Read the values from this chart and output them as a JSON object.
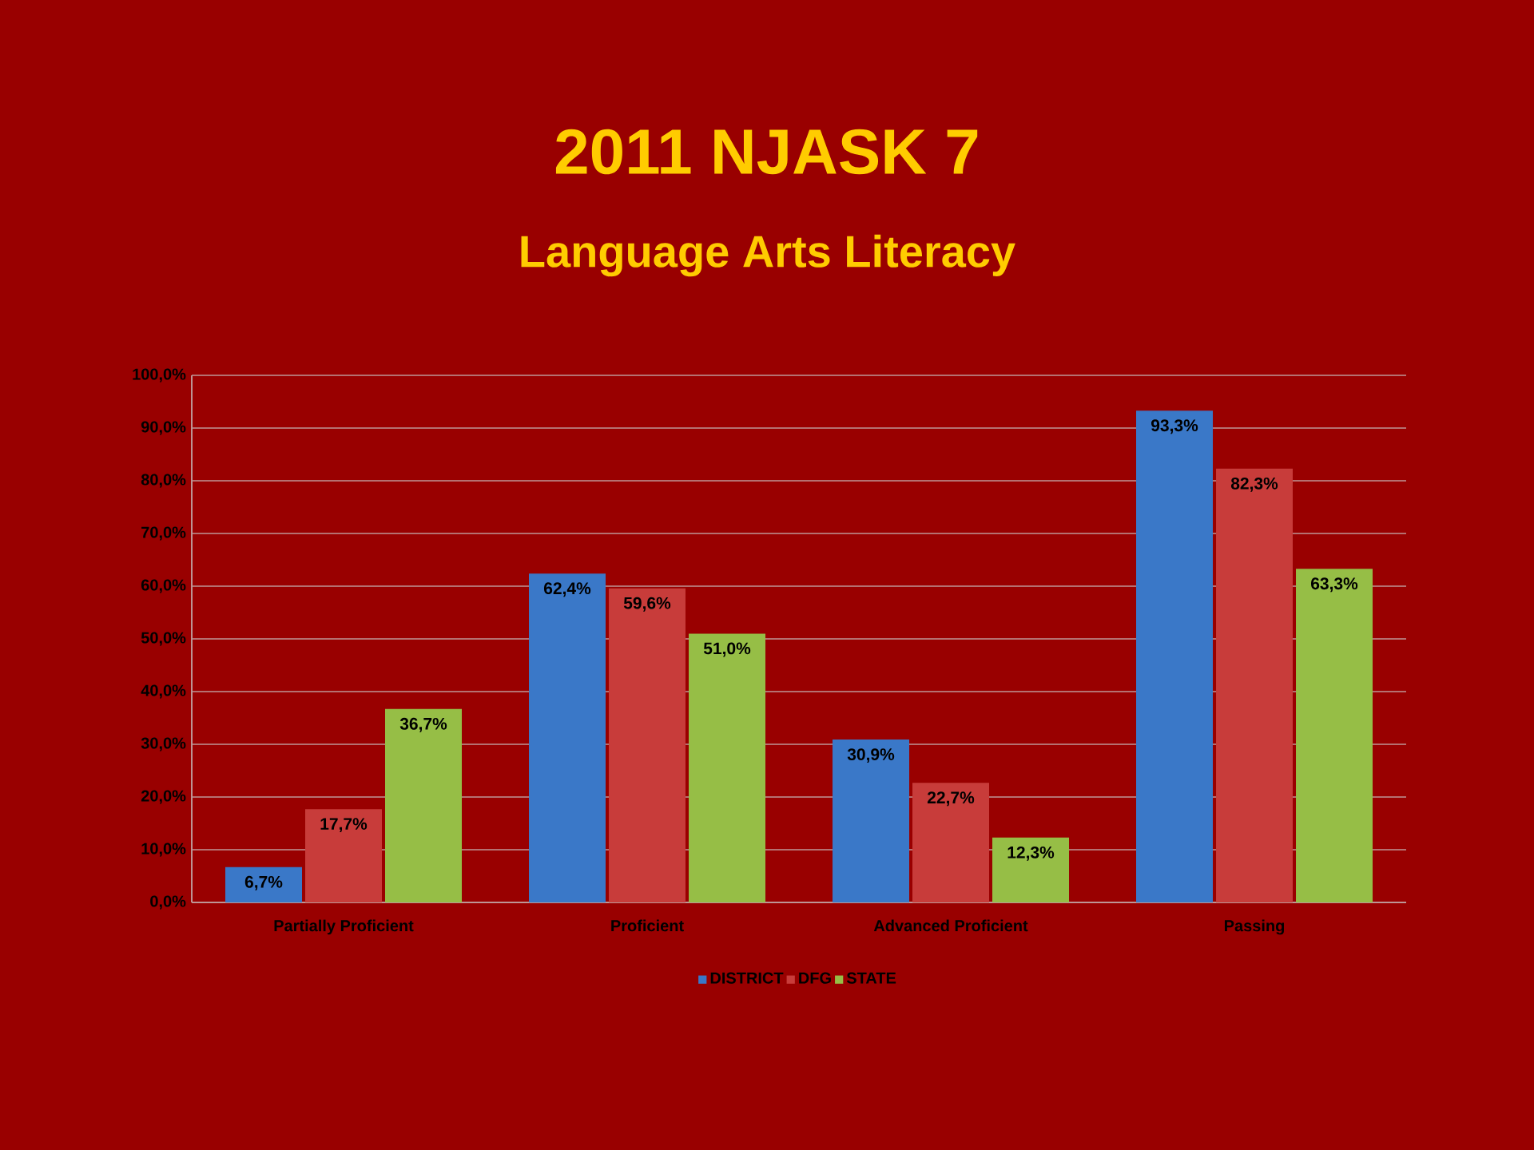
{
  "chart_data": {
    "type": "bar",
    "title": "2011 NJASK 7",
    "subtitle": "Language Arts Literacy",
    "categories": [
      "Partially Proficient",
      "Proficient",
      "Advanced Proficient",
      "Passing"
    ],
    "series": [
      {
        "name": "DISTRICT",
        "color": "#3a78c8",
        "values": [
          6.7,
          62.4,
          30.9,
          93.3
        ],
        "value_labels": [
          "6,7%",
          "62,4%",
          "30,9%",
          "93,3%"
        ]
      },
      {
        "name": "DFG",
        "color": "#c83c3a",
        "values": [
          17.7,
          59.6,
          22.7,
          82.3
        ],
        "value_labels": [
          "17,7%",
          "59,6%",
          "22,7%",
          "82,3%"
        ]
      },
      {
        "name": "STATE",
        "color": "#96be46",
        "values": [
          36.7,
          51.0,
          12.3,
          63.3
        ],
        "value_labels": [
          "36,7%",
          "51,0%",
          "12,3%",
          "63,3%"
        ]
      }
    ],
    "ylim": [
      0,
      100
    ],
    "yticks": [
      {
        "value": 0,
        "label": "0,0%"
      },
      {
        "value": 10,
        "label": "10,0%"
      },
      {
        "value": 20,
        "label": "20,0%"
      },
      {
        "value": 30,
        "label": "30,0%"
      },
      {
        "value": 40,
        "label": "40,0%"
      },
      {
        "value": 50,
        "label": "50,0%"
      },
      {
        "value": 60,
        "label": "60,0%"
      },
      {
        "value": 70,
        "label": "70,0%"
      },
      {
        "value": 80,
        "label": "80,0%"
      },
      {
        "value": 90,
        "label": "90,0%"
      },
      {
        "value": 100,
        "label": "100,0%"
      }
    ],
    "grid": "y",
    "legend": "bottom"
  }
}
